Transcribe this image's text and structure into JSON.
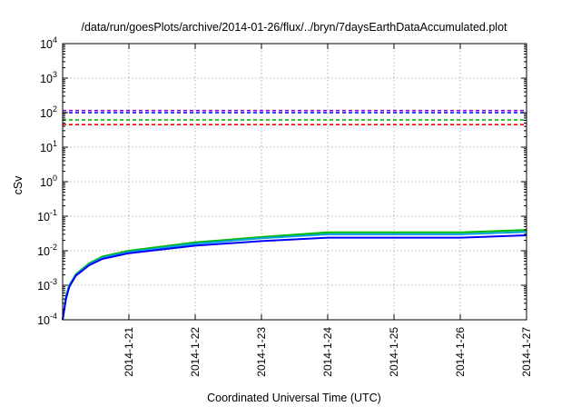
{
  "chart_data": {
    "type": "line",
    "title": "/data/run/goesPlots/archive/2014-01-26/flux/../bryn/7daysEarthDataAccumulated.plot",
    "xlabel": "Coordinated Universal Time (UTC)",
    "ylabel": "cSv",
    "x_type": "date",
    "xlim": [
      "2014-01-20",
      "2014-01-27"
    ],
    "x_ticks": [
      "2014-1-21",
      "2014-1-22",
      "2014-1-23",
      "2014-1-24",
      "2014-1-25",
      "2014-1-26",
      "2014-1-27"
    ],
    "y_scale": "log",
    "ylim": [
      0.0001,
      10000
    ],
    "y_ticks": [
      {
        "value": 0.0001,
        "base": "10",
        "exp": "-4"
      },
      {
        "value": 0.001,
        "base": "10",
        "exp": "-3"
      },
      {
        "value": 0.01,
        "base": "10",
        "exp": "-2"
      },
      {
        "value": 0.1,
        "base": "10",
        "exp": "-1"
      },
      {
        "value": 1,
        "base": "10",
        "exp": "0"
      },
      {
        "value": 10,
        "base": "10",
        "exp": "1"
      },
      {
        "value": 100,
        "base": "10",
        "exp": "2"
      },
      {
        "value": 1000,
        "base": "10",
        "exp": "3"
      },
      {
        "value": 10000,
        "base": "10",
        "exp": "4"
      }
    ],
    "grid": true,
    "legend": false,
    "reference_lines": [
      {
        "y": 115,
        "color": "#9400d3"
      },
      {
        "y": 100,
        "color": "#0000ff"
      },
      {
        "y": 62,
        "color": "#00bb00"
      },
      {
        "y": 45,
        "color": "#ff0000"
      }
    ],
    "series": [
      {
        "color": "#00bb00",
        "points": [
          [
            "2014-01-20 00:00",
            0.0001
          ],
          [
            "2014-01-20 01:12",
            0.0005
          ],
          [
            "2014-01-20 02:24",
            0.001
          ],
          [
            "2014-01-20 04:48",
            0.0021
          ],
          [
            "2014-01-20 09:36",
            0.0043
          ],
          [
            "2014-01-20 14:24",
            0.0068
          ],
          [
            "2014-01-21 00:00",
            0.01
          ],
          [
            "2014-01-22 00:00",
            0.0175
          ],
          [
            "2014-01-23 00:00",
            0.025
          ],
          [
            "2014-01-24 00:00",
            0.034
          ],
          [
            "2014-01-25 00:00",
            0.034
          ],
          [
            "2014-01-26 00:00",
            0.034
          ],
          [
            "2014-01-27 00:00",
            0.04
          ]
        ]
      },
      {
        "color": "#00a0e0",
        "points": [
          [
            "2014-01-20 00:00",
            0.0001
          ],
          [
            "2014-01-20 01:12",
            0.00045
          ],
          [
            "2014-01-20 02:24",
            0.00095
          ],
          [
            "2014-01-20 04:48",
            0.002
          ],
          [
            "2014-01-20 09:36",
            0.004
          ],
          [
            "2014-01-20 14:24",
            0.0063
          ],
          [
            "2014-01-21 00:00",
            0.0092
          ],
          [
            "2014-01-22 00:00",
            0.016
          ],
          [
            "2014-01-23 00:00",
            0.023
          ],
          [
            "2014-01-24 00:00",
            0.03
          ],
          [
            "2014-01-25 00:00",
            0.03
          ],
          [
            "2014-01-26 00:00",
            0.03
          ],
          [
            "2014-01-27 00:00",
            0.035
          ]
        ]
      },
      {
        "color": "#0000ff",
        "points": [
          [
            "2014-01-20 00:00",
            0.0001
          ],
          [
            "2014-01-20 01:12",
            0.0004
          ],
          [
            "2014-01-20 02:24",
            0.0009
          ],
          [
            "2014-01-20 04:48",
            0.0019
          ],
          [
            "2014-01-20 09:36",
            0.0038
          ],
          [
            "2014-01-20 14:24",
            0.0058
          ],
          [
            "2014-01-21 00:00",
            0.0085
          ],
          [
            "2014-01-22 00:00",
            0.014
          ],
          [
            "2014-01-23 00:00",
            0.019
          ],
          [
            "2014-01-24 00:00",
            0.024
          ],
          [
            "2014-01-25 00:00",
            0.024
          ],
          [
            "2014-01-26 00:00",
            0.024
          ],
          [
            "2014-01-27 00:00",
            0.028
          ]
        ]
      }
    ]
  }
}
